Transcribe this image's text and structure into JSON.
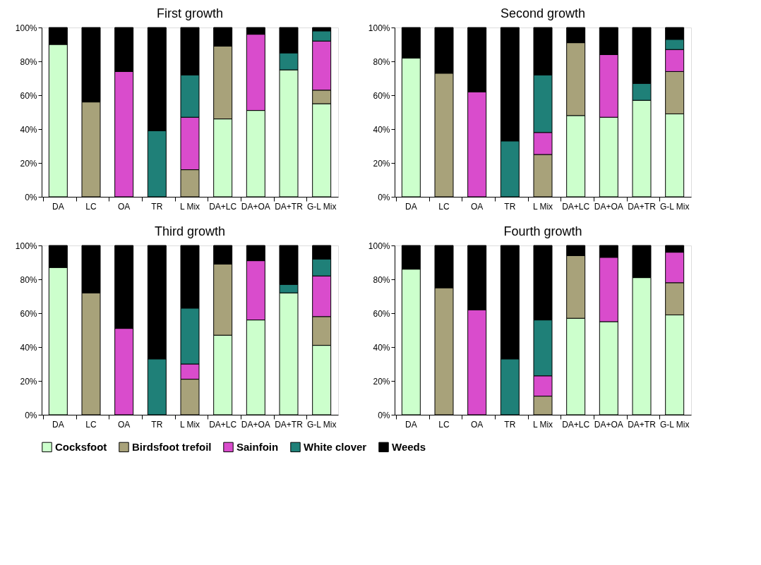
{
  "chart_data": [
    {
      "type": "bar",
      "title": "First growth",
      "stacked": true,
      "legend": "bottom",
      "grid": false,
      "ylim": [
        0,
        100
      ],
      "yticks": [
        {
          "value": 0,
          "label": "0%"
        },
        {
          "value": 20,
          "label": "20%"
        },
        {
          "value": 40,
          "label": "40%"
        },
        {
          "value": 60,
          "label": "60%"
        },
        {
          "value": 80,
          "label": "80%"
        },
        {
          "value": 100,
          "label": "100%"
        }
      ],
      "categories": [
        "DA",
        "LC",
        "OA",
        "TR",
        "L Mix",
        "DA+LC",
        "DA+OA",
        "DA+TR",
        "G-L Mix"
      ],
      "series": [
        {
          "name": "Cocksfoot",
          "color": "#ccffcc",
          "values": [
            90,
            null,
            null,
            null,
            null,
            46,
            51,
            75,
            55
          ]
        },
        {
          "name": "Birdsfoot trefoil",
          "color": "#a8a27a",
          "values": [
            null,
            56,
            null,
            null,
            16,
            43,
            null,
            null,
            8
          ]
        },
        {
          "name": "Sainfoin",
          "color": "#d94ccc",
          "values": [
            null,
            null,
            74,
            null,
            31,
            null,
            45,
            null,
            29
          ]
        },
        {
          "name": "White clover",
          "color": "#1f8078",
          "values": [
            null,
            null,
            null,
            39,
            25,
            null,
            null,
            10,
            6
          ]
        },
        {
          "name": "Weeds",
          "color": "#000000",
          "values": [
            10,
            44,
            26,
            61,
            28,
            11,
            4,
            15,
            2
          ]
        }
      ]
    },
    {
      "type": "bar",
      "title": "Second growth",
      "stacked": true,
      "legend": "bottom",
      "grid": false,
      "ylim": [
        0,
        100
      ],
      "yticks": [
        {
          "value": 0,
          "label": "0%"
        },
        {
          "value": 20,
          "label": "20%"
        },
        {
          "value": 40,
          "label": "40%"
        },
        {
          "value": 60,
          "label": "60%"
        },
        {
          "value": 80,
          "label": "80%"
        },
        {
          "value": 100,
          "label": "100%"
        }
      ],
      "categories": [
        "DA",
        "LC",
        "OA",
        "TR",
        "L Mix",
        "DA+LC",
        "DA+OA",
        "DA+TR",
        "G-L Mix"
      ],
      "series": [
        {
          "name": "Cocksfoot",
          "color": "#ccffcc",
          "values": [
            82,
            null,
            null,
            null,
            null,
            48,
            47,
            57,
            49
          ]
        },
        {
          "name": "Birdsfoot trefoil",
          "color": "#a8a27a",
          "values": [
            null,
            73,
            null,
            null,
            25,
            43,
            null,
            null,
            25
          ]
        },
        {
          "name": "Sainfoin",
          "color": "#d94ccc",
          "values": [
            null,
            null,
            62,
            null,
            13,
            null,
            37,
            null,
            13
          ]
        },
        {
          "name": "White clover",
          "color": "#1f8078",
          "values": [
            null,
            null,
            null,
            33,
            34,
            null,
            null,
            10,
            6
          ]
        },
        {
          "name": "Weeds",
          "color": "#000000",
          "values": [
            18,
            27,
            38,
            67,
            28,
            9,
            16,
            33,
            7
          ]
        }
      ]
    },
    {
      "type": "bar",
      "title": "Third growth",
      "stacked": true,
      "legend": "bottom",
      "grid": false,
      "ylim": [
        0,
        100
      ],
      "yticks": [
        {
          "value": 0,
          "label": "0%"
        },
        {
          "value": 20,
          "label": "20%"
        },
        {
          "value": 40,
          "label": "40%"
        },
        {
          "value": 60,
          "label": "60%"
        },
        {
          "value": 80,
          "label": "80%"
        },
        {
          "value": 100,
          "label": "100%"
        }
      ],
      "categories": [
        "DA",
        "LC",
        "OA",
        "TR",
        "L Mix",
        "DA+LC",
        "DA+OA",
        "DA+TR",
        "G-L Mix"
      ],
      "series": [
        {
          "name": "Cocksfoot",
          "color": "#ccffcc",
          "values": [
            87,
            null,
            null,
            null,
            null,
            47,
            56,
            72,
            41
          ]
        },
        {
          "name": "Birdsfoot trefoil",
          "color": "#a8a27a",
          "values": [
            null,
            72,
            null,
            null,
            21,
            42,
            null,
            null,
            17
          ]
        },
        {
          "name": "Sainfoin",
          "color": "#d94ccc",
          "values": [
            null,
            null,
            51,
            null,
            9,
            null,
            35,
            null,
            24
          ]
        },
        {
          "name": "White clover",
          "color": "#1f8078",
          "values": [
            null,
            null,
            null,
            33,
            33,
            null,
            null,
            5,
            10
          ]
        },
        {
          "name": "Weeds",
          "color": "#000000",
          "values": [
            13,
            28,
            49,
            67,
            37,
            11,
            9,
            23,
            8
          ]
        }
      ]
    },
    {
      "type": "bar",
      "title": "Fourth growth",
      "stacked": true,
      "legend": "bottom",
      "grid": false,
      "ylim": [
        0,
        100
      ],
      "yticks": [
        {
          "value": 0,
          "label": "0%"
        },
        {
          "value": 20,
          "label": "20%"
        },
        {
          "value": 40,
          "label": "40%"
        },
        {
          "value": 60,
          "label": "60%"
        },
        {
          "value": 80,
          "label": "80%"
        },
        {
          "value": 100,
          "label": "100%"
        }
      ],
      "categories": [
        "DA",
        "LC",
        "OA",
        "TR",
        "L Mix",
        "DA+LC",
        "DA+OA",
        "DA+TR",
        "G-L Mix"
      ],
      "series": [
        {
          "name": "Cocksfoot",
          "color": "#ccffcc",
          "values": [
            86,
            null,
            null,
            null,
            null,
            57,
            55,
            81,
            59
          ]
        },
        {
          "name": "Birdsfoot trefoil",
          "color": "#a8a27a",
          "values": [
            null,
            75,
            null,
            null,
            11,
            37,
            null,
            null,
            19
          ]
        },
        {
          "name": "Sainfoin",
          "color": "#d94ccc",
          "values": [
            null,
            null,
            62,
            null,
            12,
            null,
            38,
            null,
            18
          ]
        },
        {
          "name": "White clover",
          "color": "#1f8078",
          "values": [
            null,
            null,
            null,
            33,
            33,
            null,
            null,
            null,
            null
          ]
        },
        {
          "name": "Weeds",
          "color": "#000000",
          "values": [
            14,
            25,
            38,
            67,
            44,
            6,
            7,
            19,
            4
          ]
        }
      ]
    }
  ]
}
